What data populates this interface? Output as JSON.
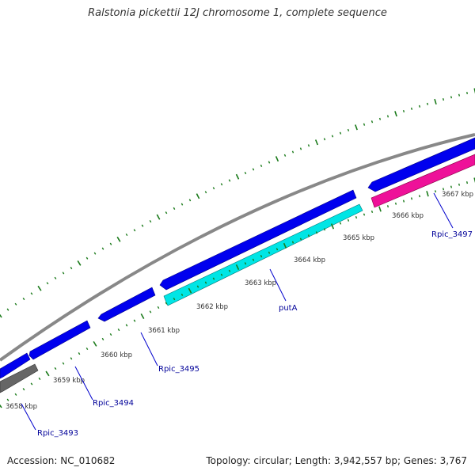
{
  "header": {
    "title": "Ralstonia pickettii 12J chromosome 1, complete sequence"
  },
  "footer": {
    "accession": "Accession: NC_010682",
    "summary": "Topology: circular; Length: 3,942,557 bp; Genes: 3,767"
  },
  "colors": {
    "backbone": "#888888",
    "forward_gene": "#0000ee",
    "reverse_gene_cyan": "#00e5e5",
    "reverse_gene_pink": "#ee1199",
    "gray_gene": "#666666",
    "tick": "#1a7a1a",
    "label_line": "#0000cc"
  },
  "ticks": [
    {
      "label": "3658 kbp"
    },
    {
      "label": "3659 kbp"
    },
    {
      "label": "3660 kbp"
    },
    {
      "label": "3661 kbp"
    },
    {
      "label": "3662 kbp"
    },
    {
      "label": "3663 kbp"
    },
    {
      "label": "3664 kbp"
    },
    {
      "label": "3665 kbp"
    },
    {
      "label": "3666 kbp"
    },
    {
      "label": "3667 kbp"
    }
  ],
  "genes": [
    {
      "name": "Rpic_3493"
    },
    {
      "name": "Rpic_3494"
    },
    {
      "name": "Rpic_3495"
    },
    {
      "name": "putA"
    },
    {
      "name": "Rpic_3497"
    }
  ]
}
